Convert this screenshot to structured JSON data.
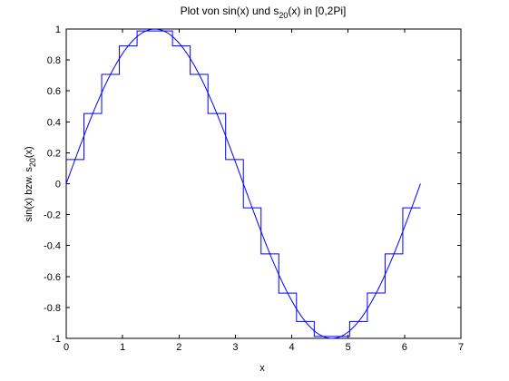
{
  "chart_data": {
    "type": "line",
    "title_text": "Plot von sin(x) und s",
    "title_subscript": "20",
    "title_suffix": "(x) in [0,2Pi]",
    "xlabel": "x",
    "ylabel_text": "sin(x) bzw.  s",
    "ylabel_subscript": "20",
    "ylabel_suffix": "(x)",
    "xlim": [
      0,
      7
    ],
    "ylim": [
      -1,
      1
    ],
    "xticks": [
      0,
      1,
      2,
      3,
      4,
      5,
      6,
      7
    ],
    "yticks": [
      -1,
      -0.8,
      -0.6,
      -0.4,
      -0.2,
      0,
      0.2,
      0.4,
      0.6,
      0.8,
      1
    ],
    "xtick_labels": [
      "0",
      "1",
      "2",
      "3",
      "4",
      "5",
      "6",
      "7"
    ],
    "ytick_labels": [
      "-1",
      "-0.8",
      "-0.6",
      "-0.4",
      "-0.2",
      "0",
      "0.2",
      "0.4",
      "0.6",
      "0.8",
      "1"
    ],
    "grid": false,
    "line_color": "#0000ff",
    "series": [
      {
        "kind": "line",
        "function": "sin",
        "x_range": [
          0,
          6.2832
        ],
        "samples": 200
      },
      {
        "kind": "step",
        "function": "sin-midpoint-step",
        "x_range": [
          0,
          6.2832
        ],
        "intervals": 20
      }
    ]
  }
}
